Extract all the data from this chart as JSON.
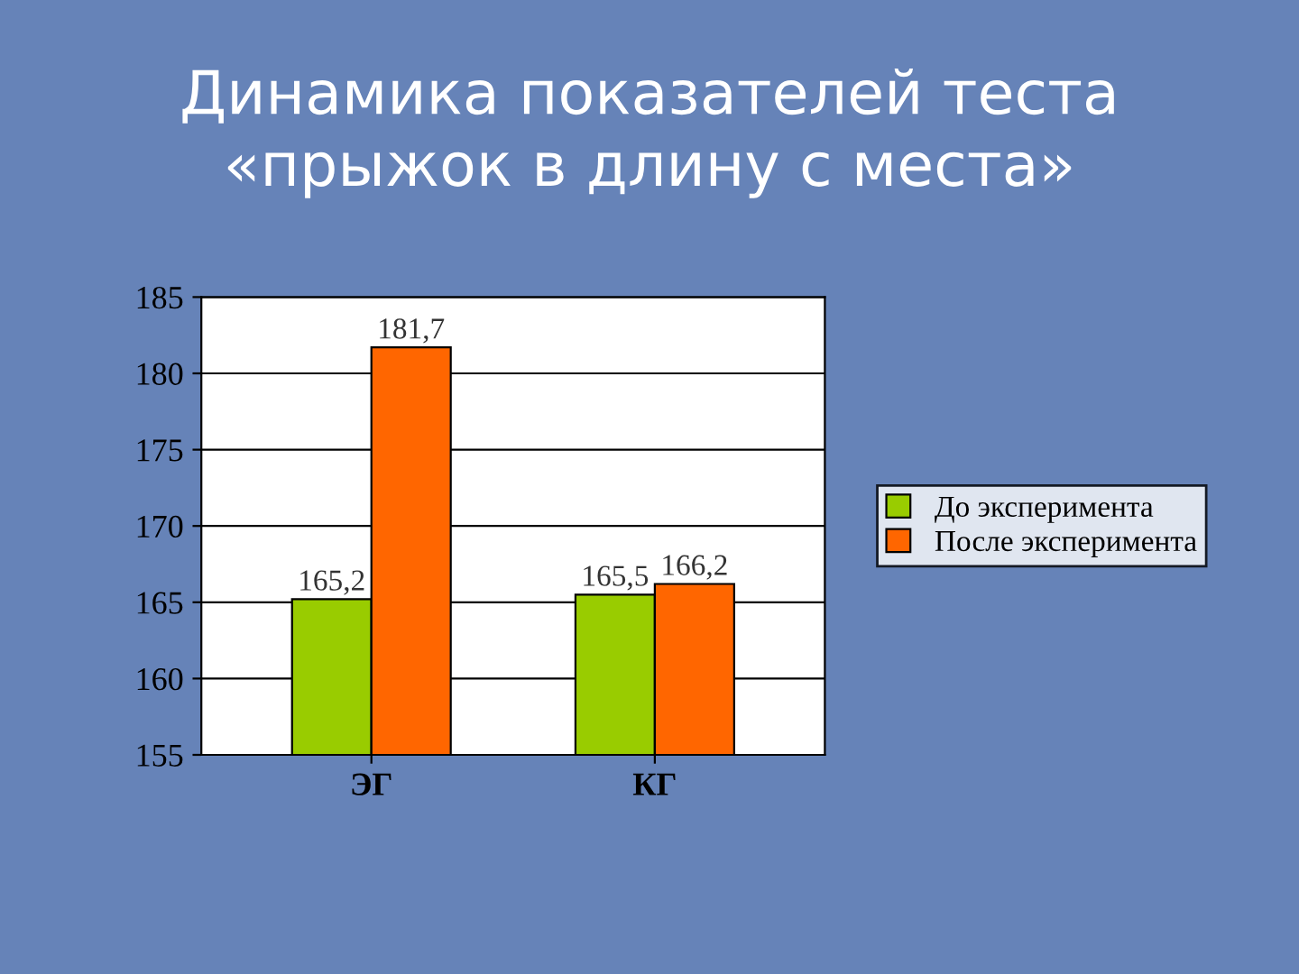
{
  "chart_data": {
    "type": "bar",
    "title": "Динамика показателей теста\n«прыжок в длину с места»",
    "categories": [
      "ЭГ",
      "КГ"
    ],
    "series": [
      {
        "name": "До эксперимента",
        "color": "#99cc00",
        "values": [
          165.2,
          165.5
        ],
        "value_labels": [
          "165,2",
          "165,5"
        ]
      },
      {
        "name": "После эксперимента",
        "color": "#ff6600",
        "values": [
          181.7,
          166.2
        ],
        "value_labels": [
          "181,7",
          "166,2"
        ]
      }
    ],
    "ylim": [
      155,
      185
    ],
    "yticks": [
      155,
      160,
      165,
      170,
      175,
      180,
      185
    ],
    "grid": "y",
    "legend": "right"
  }
}
